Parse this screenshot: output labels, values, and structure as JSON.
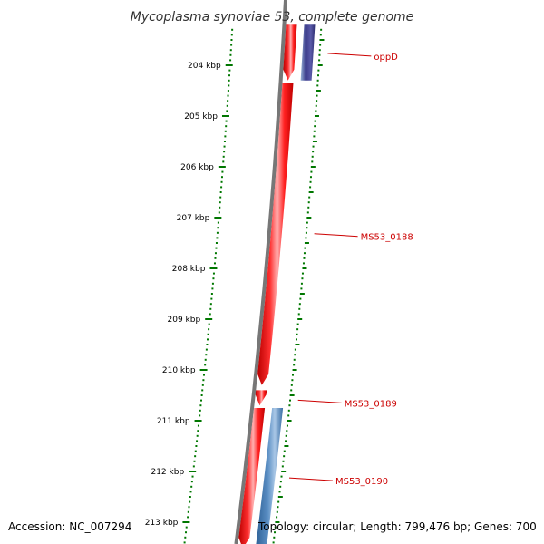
{
  "title": "Mycoplasma synoviae 53, complete genome",
  "footer": {
    "accession": "Accession: NC_007294",
    "topology": "Topology: circular; Length: 799,476 bp; Genes: 700"
  },
  "colors": {
    "forward_gene": "#ee0000",
    "reverse_gene_blue": "#4a7fb5",
    "reverse_gene_navy": "#3a3a8a",
    "backbone": "#777777",
    "ticks": "#007700",
    "label": "#cc0000"
  },
  "ticks": [
    {
      "label": "204 kbp",
      "kbp": 204
    },
    {
      "label": "205 kbp",
      "kbp": 205
    },
    {
      "label": "206 kbp",
      "kbp": 206
    },
    {
      "label": "207 kbp",
      "kbp": 207
    },
    {
      "label": "208 kbp",
      "kbp": 208
    },
    {
      "label": "209 kbp",
      "kbp": 209
    },
    {
      "label": "210 kbp",
      "kbp": 210
    },
    {
      "label": "211 kbp",
      "kbp": 211
    },
    {
      "label": "212 kbp",
      "kbp": 212
    },
    {
      "label": "213 kbp",
      "kbp": 213
    }
  ],
  "genes": [
    {
      "name": "oppD",
      "strand": "reverse",
      "color": "navy",
      "start_kbp": 203.2,
      "end_kbp": 204.3
    },
    {
      "name": "",
      "strand": "forward",
      "color": "red",
      "start_kbp": 203.2,
      "end_kbp": 204.3
    },
    {
      "name": "MS53_0188",
      "strand": "forward",
      "color": "red",
      "start_kbp": 204.35,
      "end_kbp": 210.3
    },
    {
      "name": "MS53_0189",
      "strand": "forward",
      "color": "red",
      "start_kbp": 210.4,
      "end_kbp": 210.7
    },
    {
      "name": "",
      "strand": "forward",
      "color": "red",
      "start_kbp": 210.75,
      "end_kbp": 213.6
    },
    {
      "name": "MS53_0190",
      "strand": "reverse",
      "color": "blue",
      "start_kbp": 210.75,
      "end_kbp": 213.6
    }
  ],
  "labels": [
    {
      "text": "oppD",
      "kbp": 203.82
    },
    {
      "text": "MS53_0188",
      "kbp": 207.37
    },
    {
      "text": "MS53_0189",
      "kbp": 210.65
    },
    {
      "text": "MS53_0190",
      "kbp": 212.18
    }
  ]
}
